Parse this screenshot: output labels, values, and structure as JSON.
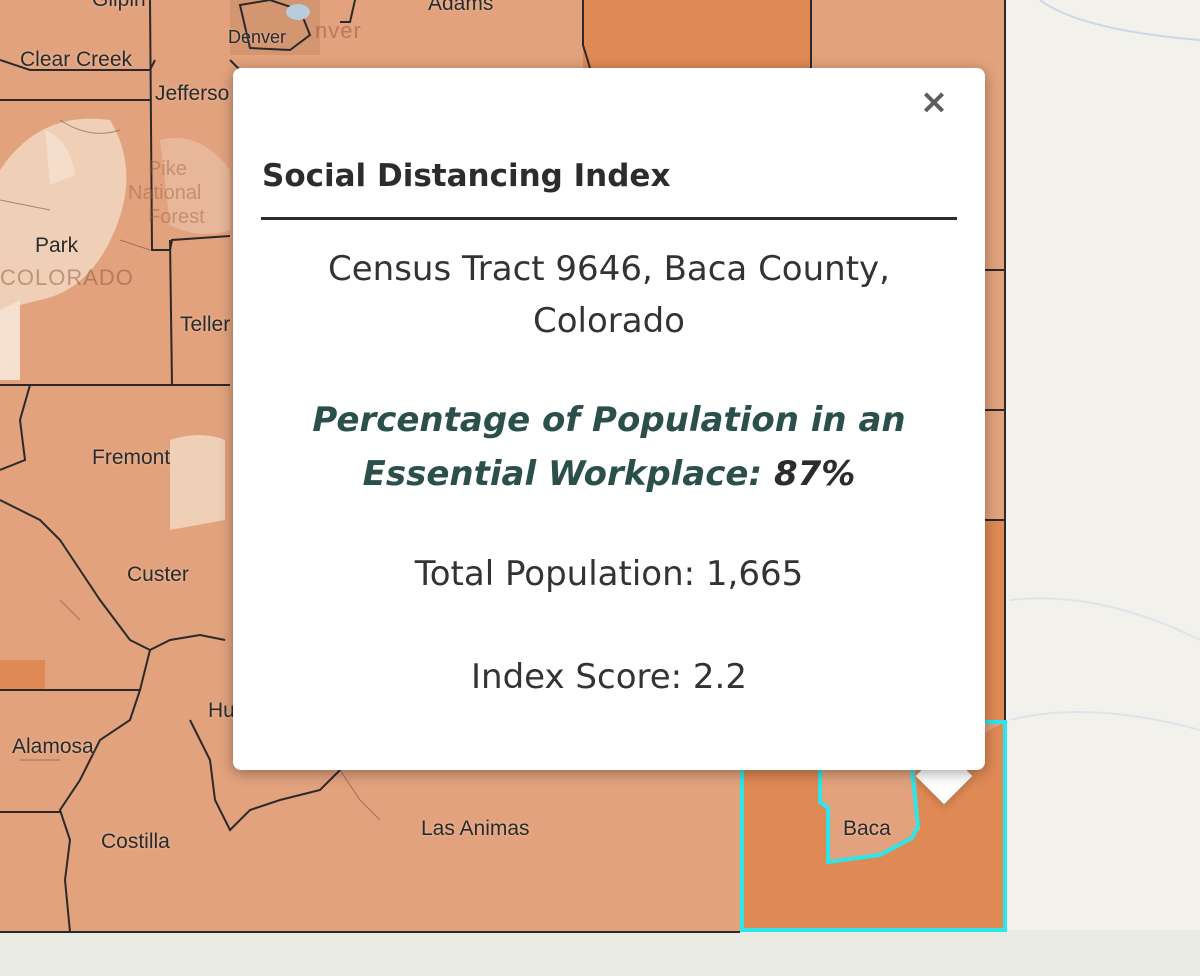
{
  "map": {
    "labels": {
      "gilpin": "Gilpin",
      "adams": "Adams",
      "denver": "Denver",
      "denver_watermark": "nver",
      "clear_creek": "Clear Creek",
      "jefferson": "Jefferso",
      "park": "Park",
      "colorado_watermark": "COLORADO",
      "pike_forest": [
        "Pike",
        "National",
        "Forest"
      ],
      "teller": "Teller",
      "fremont": "Fremont",
      "custer": "Custer",
      "huerfano": "Hu",
      "alamosa": "Alamosa",
      "costilla": "Costilla",
      "las_animas": "Las Animas",
      "baca": "Baca"
    },
    "colors": {
      "base_choropleth": "#e2a27d",
      "darker_tract": "#df8955",
      "light_tract": "#efcfb5",
      "highlight_outline": "#2ee6ea",
      "basemap": "#f3f1ec"
    }
  },
  "popup": {
    "close_label": "×",
    "title": "Social Distancing Index",
    "place_line1": "Census Tract 9646, Baca County,",
    "place_line2": "Colorado",
    "metric_line1": "Percentage of Population in an",
    "metric_line2": "Essential Workplace:",
    "metric_value": "87%",
    "population_text": "Total Population: 1,665",
    "index_score_text": "Index Score: 2.2"
  }
}
